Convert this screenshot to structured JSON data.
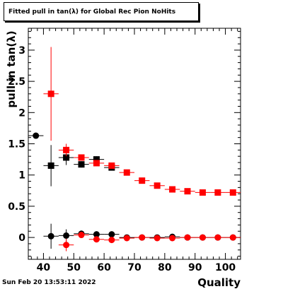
{
  "title": "Fitted pull in tan(λ) for Global Rec Pion NoHits",
  "footer_date": "Sun Feb 20 13:53:11 2022",
  "chart_data": {
    "type": "scatter",
    "title": "Fitted pull in tan(λ) for Global Rec Pion NoHits",
    "xlabel": "Quality",
    "ylabel": "pull in tan(λ)",
    "xlim": [
      35,
      105
    ],
    "ylim": [
      -0.35,
      3.35
    ],
    "x_ticks": [
      40,
      50,
      60,
      70,
      80,
      90,
      100
    ],
    "y_ticks": [
      0,
      0.5,
      1,
      1.5,
      2,
      2.5,
      3
    ],
    "grid": false,
    "series": [
      {
        "color": "#000000",
        "marker": "square",
        "points": [
          {
            "x": 42.5,
            "y": 1.15,
            "yerr": 0.33
          },
          {
            "x": 47.5,
            "y": 1.28,
            "yerr": 0.12
          },
          {
            "x": 52.5,
            "y": 1.17,
            "yerr": 0.05
          },
          {
            "x": 57.5,
            "y": 1.25,
            "yerr": 0.05
          },
          {
            "x": 62.5,
            "y": 1.12,
            "yerr": 0.03
          }
        ]
      },
      {
        "color": "#ff0000",
        "marker": "square",
        "points": [
          {
            "x": 42.5,
            "y": 2.3,
            "yerr": 0.75
          },
          {
            "x": 47.5,
            "y": 1.4,
            "yerr": 0.1
          },
          {
            "x": 52.5,
            "y": 1.28,
            "yerr": 0.04
          },
          {
            "x": 57.5,
            "y": 1.19,
            "yerr": 0.03
          },
          {
            "x": 62.5,
            "y": 1.15,
            "yerr": 0.02
          },
          {
            "x": 67.5,
            "y": 1.04,
            "yerr": 0.01
          },
          {
            "x": 72.5,
            "y": 0.91,
            "yerr": 0.01
          },
          {
            "x": 77.5,
            "y": 0.83,
            "yerr": 0.01
          },
          {
            "x": 82.5,
            "y": 0.77,
            "yerr": 0.01
          },
          {
            "x": 87.5,
            "y": 0.74,
            "yerr": 0.01
          },
          {
            "x": 92.5,
            "y": 0.72,
            "yerr": 0.005
          },
          {
            "x": 97.5,
            "y": 0.72,
            "yerr": 0.005
          },
          {
            "x": 102.5,
            "y": 0.72,
            "yerr": 0.005
          }
        ]
      },
      {
        "color": "#000000",
        "marker": "circle",
        "points": [
          {
            "x": 37.5,
            "y": 1.63,
            "yerr": 0.0
          },
          {
            "x": 42.5,
            "y": 0.02,
            "yerr": 0.2
          },
          {
            "x": 47.5,
            "y": 0.03,
            "yerr": 0.1
          },
          {
            "x": 52.5,
            "y": 0.06,
            "yerr": 0.05
          },
          {
            "x": 57.5,
            "y": 0.05,
            "yerr": 0.04
          },
          {
            "x": 62.5,
            "y": 0.05,
            "yerr": 0.03
          },
          {
            "x": 67.5,
            "y": 0.0,
            "yerr": 0.02
          },
          {
            "x": 72.5,
            "y": 0.0,
            "yerr": 0.01
          },
          {
            "x": 77.5,
            "y": 0.0,
            "yerr": 0.01
          },
          {
            "x": 82.5,
            "y": 0.01,
            "yerr": 0.01
          },
          {
            "x": 87.5,
            "y": 0.0,
            "yerr": 0.01
          },
          {
            "x": 92.5,
            "y": 0.0,
            "yerr": 0.005
          },
          {
            "x": 97.5,
            "y": 0.0,
            "yerr": 0.005
          },
          {
            "x": 102.5,
            "y": 0.0,
            "yerr": 0.005
          }
        ]
      },
      {
        "color": "#ff0000",
        "marker": "circle",
        "points": [
          {
            "x": 47.5,
            "y": -0.12,
            "yerr": 0.1
          },
          {
            "x": 52.5,
            "y": 0.04,
            "yerr": 0.05
          },
          {
            "x": 57.5,
            "y": -0.03,
            "yerr": 0.03
          },
          {
            "x": 62.5,
            "y": -0.04,
            "yerr": 0.02
          },
          {
            "x": 67.5,
            "y": -0.01,
            "yerr": 0.01
          },
          {
            "x": 72.5,
            "y": 0.0,
            "yerr": 0.01
          },
          {
            "x": 77.5,
            "y": -0.01,
            "yerr": 0.01
          },
          {
            "x": 82.5,
            "y": -0.01,
            "yerr": 0.01
          },
          {
            "x": 87.5,
            "y": 0.0,
            "yerr": 0.005
          },
          {
            "x": 92.5,
            "y": 0.0,
            "yerr": 0.005
          },
          {
            "x": 97.5,
            "y": 0.0,
            "yerr": 0.005
          },
          {
            "x": 102.5,
            "y": 0.0,
            "yerr": 0.005
          }
        ]
      }
    ]
  }
}
